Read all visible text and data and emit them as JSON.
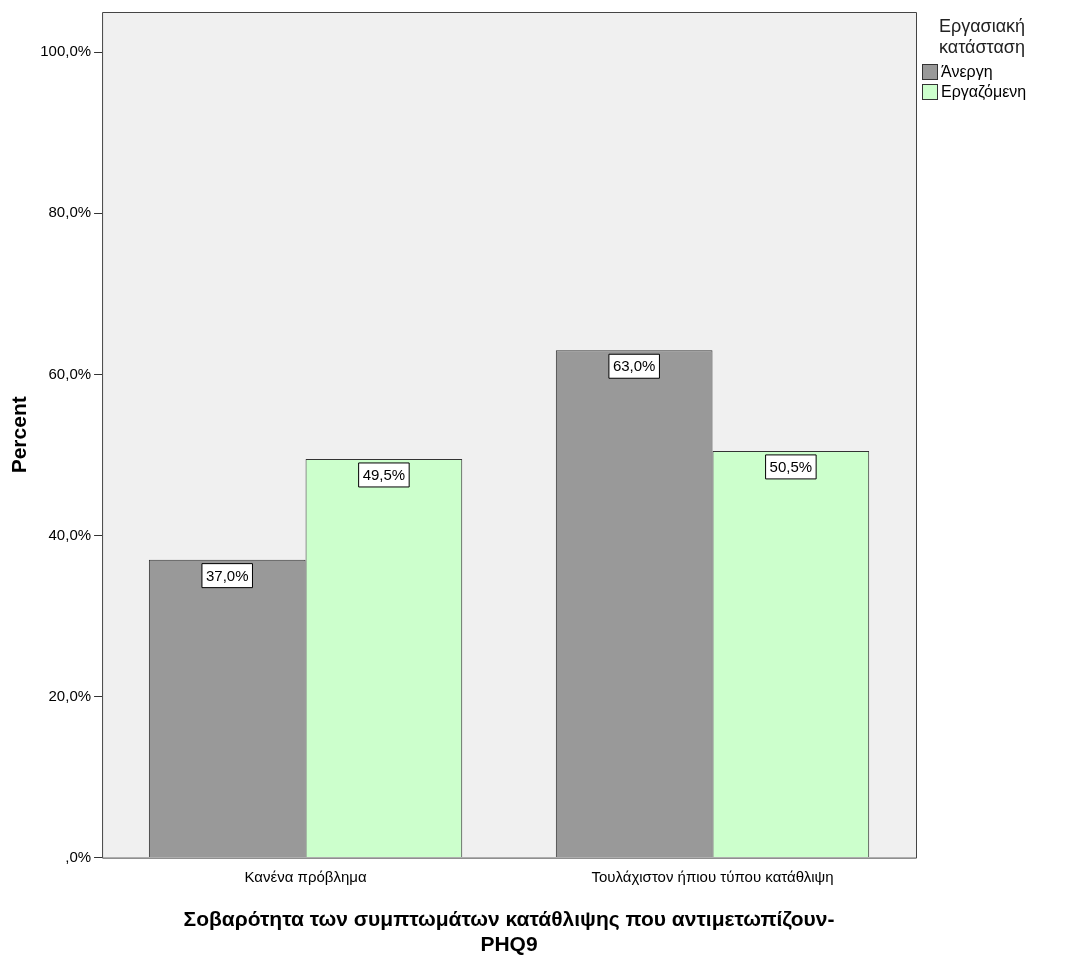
{
  "chart_data": {
    "type": "bar",
    "xlabel": "Σοβαρότητα των συμπτωμάτων κατάθλιψης που αντιμετωπίζουν- PHQ9",
    "ylabel": "Percent",
    "legend_title": "Εργασιακή κατάσταση",
    "legend": "right",
    "categories": [
      "Κανένα πρόβλημα",
      "Τουλάχιστον ήπιου τύπου κατάθλιψη"
    ],
    "series": [
      {
        "name": "Άνεργη",
        "color": "#999999",
        "values": [
          37.0,
          63.0
        ],
        "value_labels": [
          "37,0%",
          "63,0%"
        ]
      },
      {
        "name": "Εργαζόμενη",
        "color": "#ccffcc",
        "values": [
          49.5,
          50.5
        ],
        "value_labels": [
          "49,5%",
          "50,5%"
        ]
      }
    ],
    "ylim": [
      0,
      105
    ],
    "yticks": [
      {
        "value": 0,
        "label": ",0%"
      },
      {
        "value": 20,
        "label": "20,0%"
      },
      {
        "value": 40,
        "label": "40,0%"
      },
      {
        "value": 60,
        "label": "60,0%"
      },
      {
        "value": 80,
        "label": "80,0%"
      },
      {
        "value": 100,
        "label": "100,0%"
      }
    ],
    "grid": false
  }
}
